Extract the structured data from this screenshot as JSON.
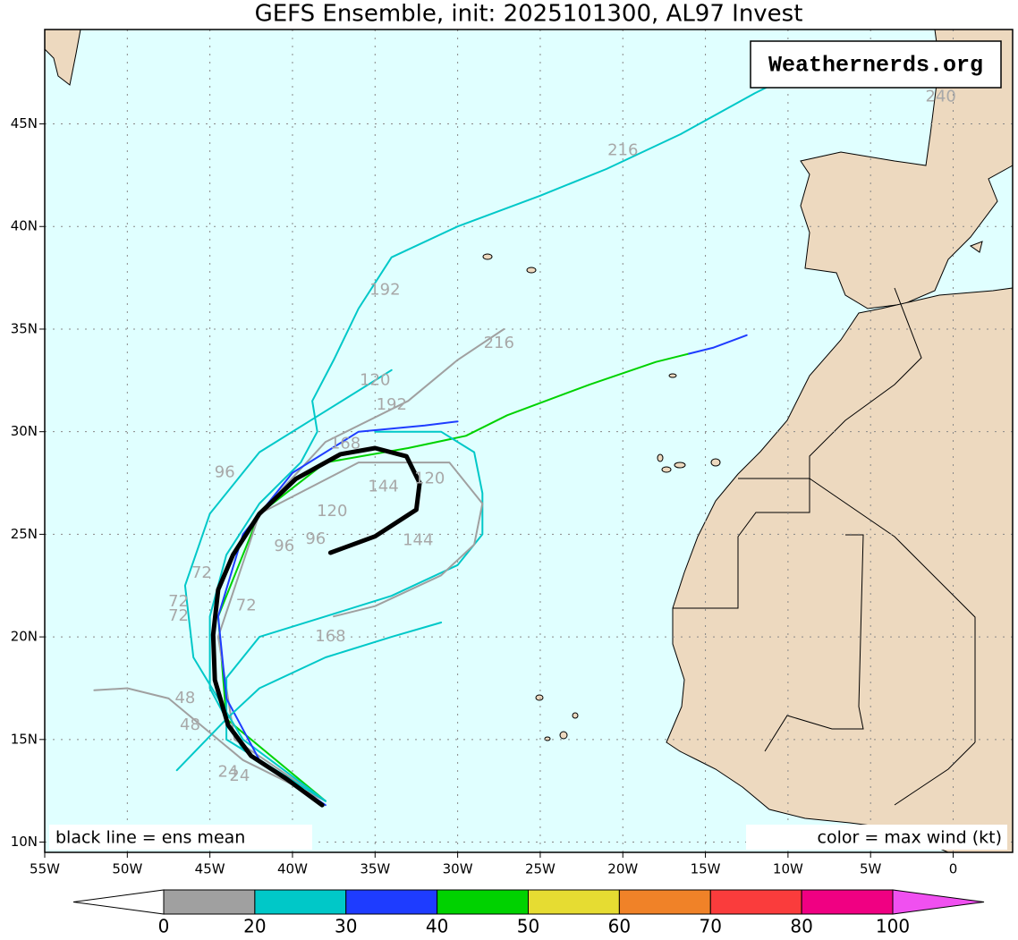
{
  "chart_data": {
    "type": "map",
    "title": "GEFS Ensemble, init: 2025101300, AL97 Invest",
    "xlim": [
      -55,
      3.6
    ],
    "ylim": [
      9.5,
      49.6
    ],
    "grid": true,
    "xticks": [
      {
        "value": -55,
        "label": "55W"
      },
      {
        "value": -50,
        "label": "50W"
      },
      {
        "value": -45,
        "label": "45W"
      },
      {
        "value": -40,
        "label": "40W"
      },
      {
        "value": -35,
        "label": "35W"
      },
      {
        "value": -30,
        "label": "30W"
      },
      {
        "value": -25,
        "label": "25W"
      },
      {
        "value": -20,
        "label": "20W"
      },
      {
        "value": -15,
        "label": "15W"
      },
      {
        "value": -10,
        "label": "10W"
      },
      {
        "value": -5,
        "label": "5W"
      },
      0
    ],
    "yticks": [
      {
        "value": 10,
        "label": "10N"
      },
      {
        "value": 15,
        "label": "15N"
      },
      {
        "value": 20,
        "label": "20N"
      },
      {
        "value": 25,
        "label": "25N"
      },
      {
        "value": 30,
        "label": "30N"
      },
      {
        "value": 35,
        "label": "35N"
      },
      {
        "value": 40,
        "label": "40N"
      },
      {
        "value": 45,
        "label": "45N"
      }
    ],
    "series": [
      {
        "color": "#00c8c8",
        "lon": [
          -38,
          -43,
          -45,
          -45,
          -44,
          -42,
          -39.5,
          -38.5,
          -38.8,
          -37.5,
          -36,
          -34,
          -30,
          -25,
          -21,
          -16.5,
          -12,
          -7
        ],
        "lat": [
          12.0,
          14.5,
          17.5,
          21,
          24,
          26.5,
          28.5,
          30,
          31.5,
          33.5,
          36,
          38.5,
          40,
          41.5,
          42.8,
          44.5,
          46.5,
          48.5
        ]
      },
      {
        "color": "#00d200",
        "lon": [
          -38,
          -44,
          -44.5,
          -42,
          -38,
          -33,
          -29.5,
          -27,
          -22,
          -18,
          -16
        ],
        "lat": [
          12,
          16,
          21,
          26,
          28.5,
          29.2,
          29.8,
          30.8,
          32.3,
          33.4,
          33.8
        ]
      },
      {
        "color": "#1e3cff",
        "lon": [
          -16,
          -14.5,
          -12.5
        ],
        "lat": [
          33.8,
          34.1,
          34.7
        ]
      },
      {
        "color": "#a0a0a0",
        "lon": [
          -38,
          -43.5,
          -44.5,
          -42,
          -38,
          -33,
          -30,
          -27.2
        ],
        "lat": [
          12,
          15,
          20,
          26,
          29.5,
          31.5,
          33.5,
          35
        ]
      },
      {
        "color": "#00c8c8",
        "lon": [
          -38,
          -43,
          -46,
          -46.5,
          -45,
          -42,
          -38,
          -34
        ],
        "lat": [
          12,
          15,
          19,
          22.5,
          26,
          29,
          31,
          33
        ]
      },
      {
        "color": "#a0a0a0",
        "lon": [
          -38,
          -43,
          -46,
          -47.5,
          -50,
          -52
        ],
        "lat": [
          12,
          14,
          16,
          17,
          17.5,
          17.4
        ]
      },
      {
        "color": "#00c8c8",
        "lon": [
          -38,
          -44,
          -44,
          -42,
          -38,
          -34,
          -30,
          -28.5,
          -28.5,
          -29,
          -31,
          -35
        ],
        "lat": [
          12,
          15,
          18,
          20,
          21,
          22,
          23.5,
          25,
          27,
          29,
          30,
          30
        ]
      },
      {
        "color": "#1e3cff",
        "lon": [
          -38,
          -42,
          -44,
          -44.5,
          -43,
          -40,
          -36,
          -32,
          -30
        ],
        "lat": [
          11.8,
          14,
          17,
          21,
          25,
          28,
          30,
          30.3,
          30.5
        ]
      },
      {
        "color": "#a0a0a0",
        "lon": [
          -42,
          -36,
          -30.5,
          -28.5,
          -29,
          -31,
          -35,
          -37.5
        ],
        "lat": [
          26,
          28.5,
          28.5,
          26.5,
          24.5,
          23,
          21.5,
          21
        ]
      },
      {
        "color": "#00c8c8",
        "lon": [
          -47,
          -44,
          -42,
          -38,
          -34,
          -31
        ],
        "lat": [
          13.5,
          16,
          17.5,
          19,
          20,
          20.7
        ]
      }
    ],
    "mean_track": {
      "color": "#000000",
      "lon": [
        -38.2,
        -40.4,
        -42.5,
        -43.9,
        -44.7,
        -44.8,
        -44.5,
        -43.6,
        -42.0,
        -39.8,
        -37.1,
        -35.0,
        -33.1,
        -32.3,
        -32.5,
        -35.0,
        -37.7
      ],
      "lat": [
        11.8,
        13.1,
        14.2,
        15.7,
        17.9,
        20.1,
        22.3,
        24.0,
        26.0,
        27.7,
        28.9,
        29.2,
        28.8,
        27.5,
        26.2,
        24.9,
        24.1
      ]
    },
    "annotations": [
      {
        "text": "240",
        "lon": -0.75,
        "lat": 46.3
      },
      {
        "text": "216",
        "lon": -20,
        "lat": 43.7
      },
      {
        "text": "192",
        "lon": -34.4,
        "lat": 36.9
      },
      {
        "text": "216",
        "lon": -27.5,
        "lat": 34.3
      },
      {
        "text": "120",
        "lon": -35,
        "lat": 32.5
      },
      {
        "text": "192",
        "lon": -34,
        "lat": 31.3
      },
      {
        "text": "96",
        "lon": -44.1,
        "lat": 28
      },
      {
        "text": "168",
        "lon": -36.8,
        "lat": 29.4
      },
      {
        "text": "120",
        "lon": -31.7,
        "lat": 27.7
      },
      {
        "text": "144",
        "lon": -34.5,
        "lat": 27.3
      },
      {
        "text": "120",
        "lon": -37.6,
        "lat": 26.1
      },
      {
        "text": "96",
        "lon": -38.6,
        "lat": 24.75
      },
      {
        "text": "96",
        "lon": -40.5,
        "lat": 24.4
      },
      {
        "text": "144",
        "lon": -32.4,
        "lat": 24.7
      },
      {
        "text": "72",
        "lon": -45.5,
        "lat": 23.1
      },
      {
        "text": "72",
        "lon": -46.9,
        "lat": 21.7
      },
      {
        "text": "72",
        "lon": -46.9,
        "lat": 21
      },
      {
        "text": "72",
        "lon": -42.8,
        "lat": 21.5
      },
      {
        "text": "168",
        "lon": -37.7,
        "lat": 20
      },
      {
        "text": "48",
        "lon": -46.5,
        "lat": 17
      },
      {
        "text": "48",
        "lon": -46.2,
        "lat": 15.7
      },
      {
        "text": "24",
        "lon": -43.9,
        "lat": 13.4
      },
      {
        "text": "24",
        "lon": -43.2,
        "lat": 13.2
      }
    ],
    "logo": "Weathernerds.org",
    "note_left": "black line = ens mean",
    "note_right": "color = max wind (kt)",
    "colorbar": {
      "levels": [
        0,
        20,
        30,
        40,
        50,
        60,
        70,
        80,
        100
      ],
      "colors": [
        "#a0a0a0",
        "#00c8c8",
        "#1e3cff",
        "#00d200",
        "#e6dc32",
        "#f08228",
        "#fa3c3c",
        "#f00082"
      ],
      "under_color": "#ffffff",
      "over_color": "#f050f0"
    }
  }
}
